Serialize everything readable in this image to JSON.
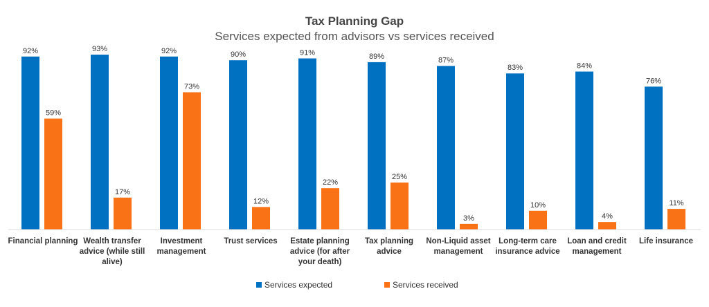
{
  "chart_data": {
    "type": "bar",
    "title": "Tax Planning Gap",
    "subtitle": "Services expected from advisors vs services received",
    "categories": [
      [
        "Financial planning"
      ],
      [
        "Wealth transfer",
        "advice (while still",
        "alive)"
      ],
      [
        "Investment",
        "management"
      ],
      [
        "Trust services"
      ],
      [
        "Estate planning",
        "advice (for after",
        "your death)"
      ],
      [
        "Tax planning",
        "advice"
      ],
      [
        "Non-Liquid asset",
        "management"
      ],
      [
        "Long-term care",
        "insurance advice"
      ],
      [
        "Loan and credit",
        "management"
      ],
      [
        "Life insurance"
      ]
    ],
    "series": [
      {
        "name": "Services expected",
        "color": "#0070C0",
        "values": [
          92,
          93,
          92,
          90,
          91,
          89,
          87,
          83,
          84,
          76
        ],
        "labels": [
          "92%",
          "93%",
          "92%",
          "90%",
          "91%",
          "89%",
          "87%",
          "83%",
          "84%",
          "76%"
        ]
      },
      {
        "name": "Services received",
        "color": "#F97316",
        "values": [
          59,
          17,
          73,
          12,
          22,
          25,
          3,
          10,
          4,
          11
        ],
        "labels": [
          "59%",
          "17%",
          "73%",
          "12%",
          "22%",
          "25%",
          "3%",
          "10%",
          "4%",
          "11%"
        ]
      }
    ],
    "ylim": [
      0,
      100
    ],
    "grid": false,
    "legend": "bottom-center",
    "xlabel": "",
    "ylabel": ""
  }
}
